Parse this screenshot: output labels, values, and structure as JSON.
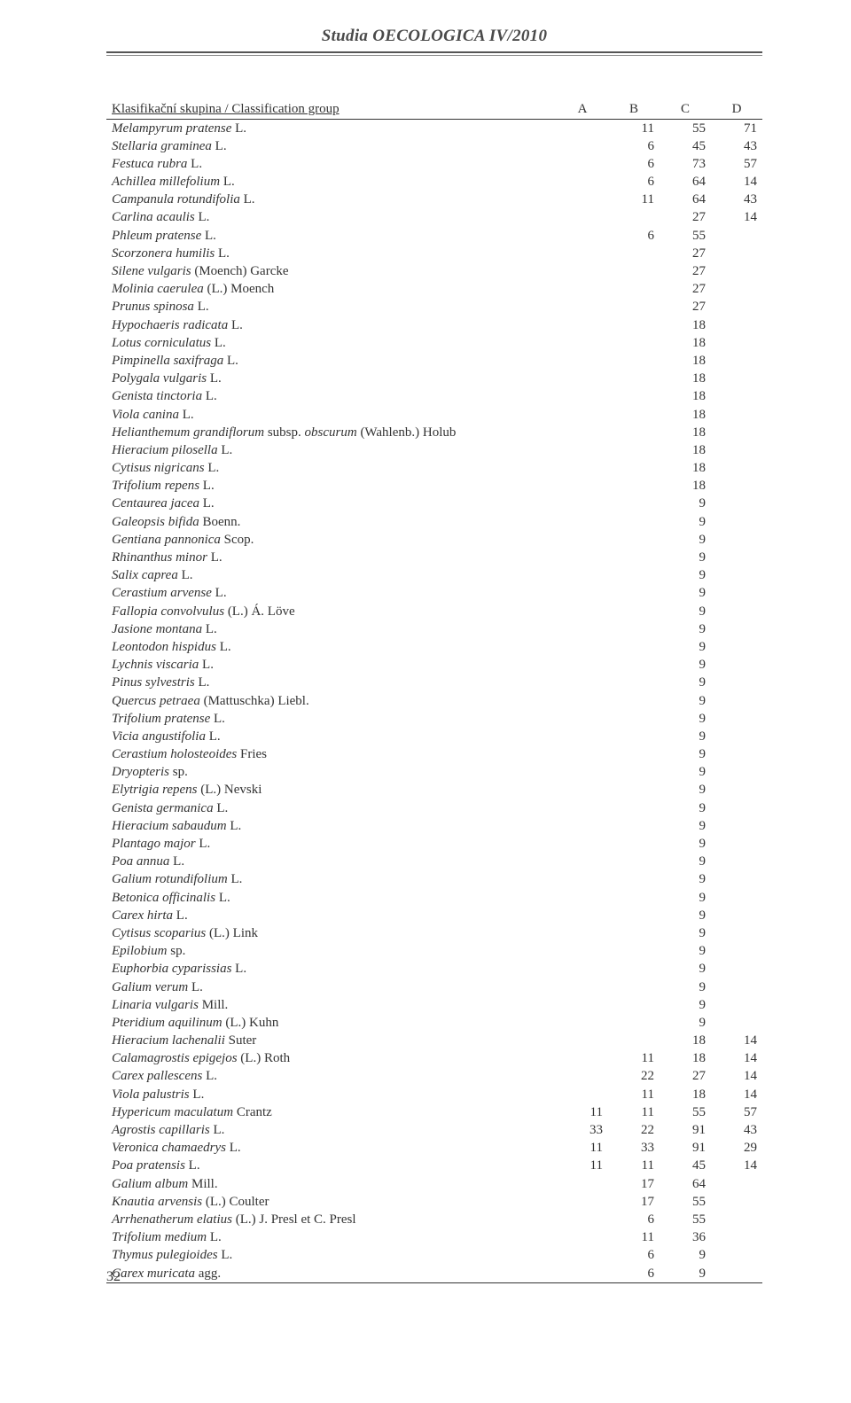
{
  "journal_title": "Studia OECOLOGICA IV/2010",
  "page_number": "32",
  "table": {
    "header": {
      "name": "Klasifikační skupina / Classification group",
      "columns": [
        "A",
        "B",
        "C",
        "D"
      ]
    },
    "rows": [
      {
        "name": "Melampyrum pratense",
        "auth": " L.",
        "A": "",
        "B": "11",
        "C": "55",
        "D": "71"
      },
      {
        "name": "Stellaria graminea",
        "auth": " L.",
        "A": "",
        "B": "6",
        "C": "45",
        "D": "43"
      },
      {
        "name": "Festuca rubra",
        "auth": " L.",
        "A": "",
        "B": "6",
        "C": "73",
        "D": "57"
      },
      {
        "name": "Achillea millefolium",
        "auth": " L.",
        "A": "",
        "B": "6",
        "C": "64",
        "D": "14"
      },
      {
        "name": "Campanula rotundifolia",
        "auth": " L.",
        "A": "",
        "B": "11",
        "C": "64",
        "D": "43"
      },
      {
        "name": "Carlina acaulis",
        "auth": " L.",
        "A": "",
        "B": "",
        "C": "27",
        "D": "14"
      },
      {
        "name": "Phleum pratense",
        "auth": " L.",
        "A": "",
        "B": "6",
        "C": "55",
        "D": ""
      },
      {
        "name": "Scorzonera humilis",
        "auth": " L.",
        "A": "",
        "B": "",
        "C": "27",
        "D": ""
      },
      {
        "name": "Silene vulgaris",
        "auth": " (Moench) Garcke",
        "A": "",
        "B": "",
        "C": "27",
        "D": ""
      },
      {
        "name": "Molinia caerulea",
        "auth": " (L.) Moench",
        "A": "",
        "B": "",
        "C": "27",
        "D": ""
      },
      {
        "name": "Prunus spinosa",
        "auth": " L.",
        "A": "",
        "B": "",
        "C": "27",
        "D": ""
      },
      {
        "name": "Hypochaeris radicata",
        "auth": " L.",
        "A": "",
        "B": "",
        "C": "18",
        "D": ""
      },
      {
        "name": "Lotus corniculatus",
        "auth": " L.",
        "A": "",
        "B": "",
        "C": "18",
        "D": ""
      },
      {
        "name": "Pimpinella saxifraga",
        "auth": " L.",
        "A": "",
        "B": "",
        "C": "18",
        "D": ""
      },
      {
        "name": "Polygala vulgaris",
        "auth": " L.",
        "A": "",
        "B": "",
        "C": "18",
        "D": ""
      },
      {
        "name": "Genista tinctoria",
        "auth": " L.",
        "A": "",
        "B": "",
        "C": "18",
        "D": ""
      },
      {
        "name": "Viola canina",
        "auth": " L.",
        "A": "",
        "B": "",
        "C": "18",
        "D": ""
      },
      {
        "name": "Helianthemum grandiflorum",
        "auth": " subsp. ",
        "name2": "obscurum",
        "auth2": " (Wahlenb.) Holub",
        "A": "",
        "B": "",
        "C": "18",
        "D": ""
      },
      {
        "name": "Hieracium pilosella",
        "auth": " L.",
        "A": "",
        "B": "",
        "C": "18",
        "D": ""
      },
      {
        "name": "Cytisus nigricans",
        "auth": " L.",
        "A": "",
        "B": "",
        "C": "18",
        "D": ""
      },
      {
        "name": "Trifolium repens",
        "auth": " L.",
        "A": "",
        "B": "",
        "C": "18",
        "D": ""
      },
      {
        "name": "Centaurea jacea",
        "auth": " L.",
        "A": "",
        "B": "",
        "C": "9",
        "D": ""
      },
      {
        "name": "Galeopsis bifida",
        "auth": " Boenn.",
        "A": "",
        "B": "",
        "C": "9",
        "D": ""
      },
      {
        "name": "Gentiana pannonica",
        "auth": " Scop.",
        "A": "",
        "B": "",
        "C": "9",
        "D": ""
      },
      {
        "name": "Rhinanthus minor",
        "auth": " L.",
        "A": "",
        "B": "",
        "C": "9",
        "D": ""
      },
      {
        "name": "Salix caprea",
        "auth": " L.",
        "A": "",
        "B": "",
        "C": "9",
        "D": ""
      },
      {
        "name": "Cerastium arvense",
        "auth": " L.",
        "A": "",
        "B": "",
        "C": "9",
        "D": ""
      },
      {
        "name": "Fallopia convolvulus",
        "auth": " (L.) Á. Löve",
        "A": "",
        "B": "",
        "C": "9",
        "D": ""
      },
      {
        "name": "Jasione montana",
        "auth": " L.",
        "A": "",
        "B": "",
        "C": "9",
        "D": ""
      },
      {
        "name": "Leontodon hispidus",
        "auth": " L.",
        "A": "",
        "B": "",
        "C": "9",
        "D": ""
      },
      {
        "name": "Lychnis viscaria",
        "auth": " L.",
        "A": "",
        "B": "",
        "C": "9",
        "D": ""
      },
      {
        "name": "Pinus sylvestris",
        "auth": " L.",
        "A": "",
        "B": "",
        "C": "9",
        "D": ""
      },
      {
        "name": "Quercus petraea",
        "auth": " (Mattuschka) Liebl.",
        "A": "",
        "B": "",
        "C": "9",
        "D": ""
      },
      {
        "name": "Trifolium pratense",
        "auth": " L.",
        "A": "",
        "B": "",
        "C": "9",
        "D": ""
      },
      {
        "name": "Vicia angustifolia",
        "auth": " L.",
        "A": "",
        "B": "",
        "C": "9",
        "D": ""
      },
      {
        "name": "Cerastium holosteoides",
        "auth": " Fries",
        "A": "",
        "B": "",
        "C": "9",
        "D": ""
      },
      {
        "name": "Dryopteris",
        "auth": " sp.",
        "A": "",
        "B": "",
        "C": "9",
        "D": ""
      },
      {
        "name": "Elytrigia repens",
        "auth": " (L.) Nevski",
        "A": "",
        "B": "",
        "C": "9",
        "D": ""
      },
      {
        "name": "Genista germanica",
        "auth": " L.",
        "A": "",
        "B": "",
        "C": "9",
        "D": ""
      },
      {
        "name": "Hieracium sabaudum",
        "auth": " L.",
        "A": "",
        "B": "",
        "C": "9",
        "D": ""
      },
      {
        "name": "Plantago major",
        "auth": " L.",
        "A": "",
        "B": "",
        "C": "9",
        "D": ""
      },
      {
        "name": "Poa annua",
        "auth": " L.",
        "A": "",
        "B": "",
        "C": "9",
        "D": ""
      },
      {
        "name": "Galium rotundifolium",
        "auth": " L.",
        "A": "",
        "B": "",
        "C": "9",
        "D": ""
      },
      {
        "name": "Betonica officinalis",
        "auth": " L.",
        "A": "",
        "B": "",
        "C": "9",
        "D": ""
      },
      {
        "name": "Carex hirta",
        "auth": " L.",
        "A": "",
        "B": "",
        "C": "9",
        "D": ""
      },
      {
        "name": "Cytisus scoparius",
        "auth": " (L.) Link",
        "A": "",
        "B": "",
        "C": "9",
        "D": ""
      },
      {
        "name": "Epilobium",
        "auth": " sp.",
        "A": "",
        "B": "",
        "C": "9",
        "D": ""
      },
      {
        "name": "Euphorbia cyparissias",
        "auth": " L.",
        "A": "",
        "B": "",
        "C": "9",
        "D": ""
      },
      {
        "name": "Galium verum",
        "auth": " L.",
        "A": "",
        "B": "",
        "C": "9",
        "D": ""
      },
      {
        "name": "Linaria vulgaris",
        "auth": " Mill.",
        "A": "",
        "B": "",
        "C": "9",
        "D": ""
      },
      {
        "name": "Pteridium aquilinum",
        "auth": " (L.) Kuhn",
        "A": "",
        "B": "",
        "C": "9",
        "D": ""
      },
      {
        "name": "Hieracium lachenalii",
        "auth": " Suter",
        "A": "",
        "B": "",
        "C": "18",
        "D": "14"
      },
      {
        "name": "Calamagrostis epigejos",
        "auth": " (L.) Roth",
        "A": "",
        "B": "11",
        "C": "18",
        "D": "14"
      },
      {
        "name": "Carex pallescens",
        "auth": " L.",
        "A": "",
        "B": "22",
        "C": "27",
        "D": "14"
      },
      {
        "name": "Viola palustris",
        "auth": " L.",
        "A": "",
        "B": "11",
        "C": "18",
        "D": "14"
      },
      {
        "name": "Hypericum maculatum",
        "auth": " Crantz",
        "A": "11",
        "B": "11",
        "C": "55",
        "D": "57"
      },
      {
        "name": "Agrostis capillaris",
        "auth": " L.",
        "A": "33",
        "B": "22",
        "C": "91",
        "D": "43"
      },
      {
        "name": "Veronica chamaedrys",
        "auth": " L.",
        "A": "11",
        "B": "33",
        "C": "91",
        "D": "29"
      },
      {
        "name": "Poa pratensis",
        "auth": " L.",
        "A": "11",
        "B": "11",
        "C": "45",
        "D": "14"
      },
      {
        "name": "Galium album",
        "auth": " Mill.",
        "A": "",
        "B": "17",
        "C": "64",
        "D": ""
      },
      {
        "name": "Knautia arvensis",
        "auth": " (L.) Coulter",
        "A": "",
        "B": "17",
        "C": "55",
        "D": ""
      },
      {
        "name": "Arrhenatherum elatius",
        "auth": " (L.) J. Presl et C. Presl",
        "A": "",
        "B": "6",
        "C": "55",
        "D": ""
      },
      {
        "name": "Trifolium medium",
        "auth": " L.",
        "A": "",
        "B": "11",
        "C": "36",
        "D": ""
      },
      {
        "name": "Thymus pulegioides",
        "auth": " L.",
        "A": "",
        "B": "6",
        "C": "9",
        "D": ""
      },
      {
        "name": "Carex muricata",
        "auth": " agg.",
        "A": "",
        "B": "6",
        "C": "9",
        "D": ""
      }
    ]
  }
}
